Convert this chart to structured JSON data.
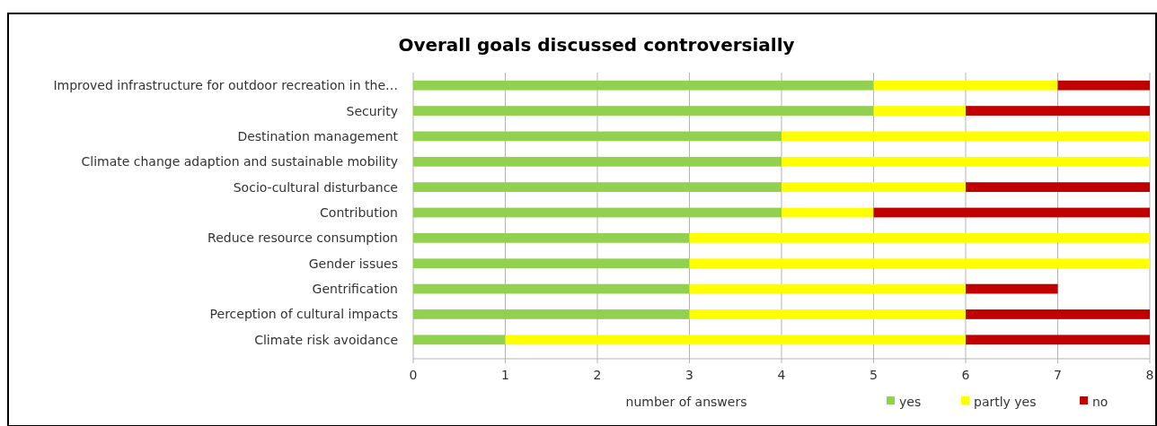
{
  "chart_data": {
    "type": "bar",
    "orientation": "horizontal",
    "stacked": true,
    "title": "Overall goals discussed controversially",
    "xlabel": "number of answers",
    "categories": [
      "Improved infrastructure for outdoor recreation in the…",
      "Security",
      "Destination management",
      "Climate change adaption and sustainable mobility",
      "Socio-cultural disturbance",
      "Contribution",
      "Reduce resource consumption",
      "Gender issues",
      "Gentrification",
      "Perception of cultural impacts",
      "Climate risk avoidance"
    ],
    "series": [
      {
        "name": "yes",
        "color": "#92d050",
        "values": [
          5,
          5,
          4,
          4,
          4,
          4,
          3,
          3,
          3,
          3,
          1
        ]
      },
      {
        "name": "partly yes",
        "color": "#ffff00",
        "values": [
          2,
          1,
          4,
          4,
          2,
          1,
          5,
          5,
          3,
          3,
          5
        ]
      },
      {
        "name": "no",
        "color": "#c00000",
        "values": [
          1,
          2,
          0,
          0,
          2,
          3,
          0,
          0,
          1,
          2,
          2
        ]
      }
    ],
    "xlim": [
      0,
      8
    ],
    "xticks": [
      0,
      1,
      2,
      3,
      4,
      5,
      6,
      7,
      8
    ],
    "grid": "x",
    "legend": "bottom right"
  }
}
